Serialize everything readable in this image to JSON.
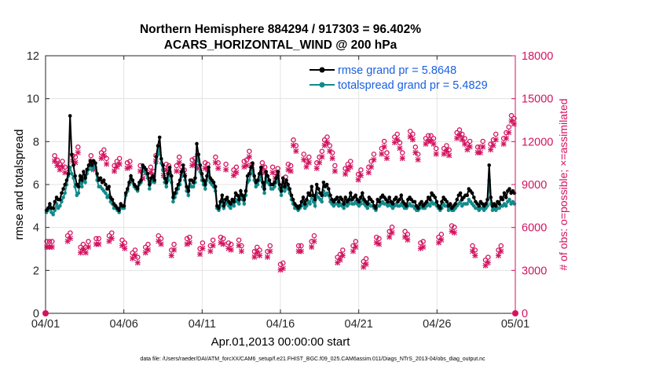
{
  "chart_data": {
    "type": "line",
    "title_line1": "Northern Hemisphere 884294 / 917303 = 96.402%",
    "title_line2": "ACARS_HORIZONTAL_WIND @ 200 hPa",
    "xlabel": "Apr.01,2013 00:00:00 start",
    "ylabel_left": "rmse and totalspread",
    "ylabel_right": "# of obs: o=possible; ×=assimilated",
    "footnote": "data file: /Users/raeder/DAI/ATM_forcXX/CAM6_setup/f.e21.FHIST_BGC.f09_025.CAM6assim.011/Diags_NTrS_2013-04/obs_diag_output.nc",
    "xlim": [
      0,
      30
    ],
    "ylim_left": [
      0,
      12
    ],
    "ylim_right": [
      0,
      18000
    ],
    "x_ticks": [
      0,
      5,
      10,
      15,
      20,
      25,
      30
    ],
    "x_tick_labels": [
      "04/01",
      "04/06",
      "04/11",
      "04/16",
      "04/21",
      "04/26",
      "05/01"
    ],
    "y_left_ticks": [
      0,
      2,
      4,
      6,
      8,
      10,
      12
    ],
    "y_left_tick_labels": [
      "0",
      "2",
      "4",
      "6",
      "8",
      "10",
      "12"
    ],
    "y_right_ticks": [
      0,
      3000,
      6000,
      9000,
      12000,
      15000,
      18000
    ],
    "y_right_tick_labels": [
      "0",
      "3000",
      "6000",
      "9000",
      "12000",
      "15000",
      "18000"
    ],
    "colors": {
      "rmse": "#000000",
      "spread": "#128a8a",
      "obs": "#d3135f",
      "legend_text": "#1a5fe0",
      "axis": "#262626"
    },
    "series": [
      {
        "name": "rmse grand pr = 5.8648",
        "key": "rmse",
        "values": [
          4.8,
          4.9,
          5.1,
          4.9,
          4.9,
          5.2,
          5.4,
          5.3,
          5.3,
          5.6,
          5.8,
          6.0,
          6.2,
          6.5,
          9.2,
          7.4,
          6.9,
          6.4,
          6.0,
          5.9,
          6.4,
          6.2,
          6.6,
          6.3,
          6.7,
          6.9,
          7.1,
          6.9,
          7.1,
          7.0,
          6.5,
          6.2,
          6.3,
          6.1,
          6.2,
          6.0,
          5.8,
          5.9,
          5.4,
          5.3,
          5.1,
          5.0,
          4.9,
          4.8,
          5.1,
          5.0,
          5.0,
          5.6,
          5.8,
          6.1,
          6.4,
          6.2,
          6.0,
          5.9,
          5.8,
          6.1,
          6.2,
          6.9,
          6.8,
          6.7,
          6.5,
          6.0,
          6.3,
          6.4,
          6.2,
          7.3,
          7.8,
          8.2,
          7.2,
          6.9,
          6.3,
          6.1,
          6.5,
          6.8,
          6.4,
          5.4,
          5.6,
          5.8,
          6.0,
          6.2,
          6.6,
          6.9,
          6.4,
          5.9,
          5.7,
          6.2,
          6.2,
          6.1,
          6.3,
          7.9,
          7.4,
          6.9,
          6.5,
          6.2,
          6.0,
          6.4,
          6.8,
          6.3,
          6.2,
          6.1,
          5.9,
          5.0,
          4.9,
          5.2,
          5.5,
          5.0,
          5.3,
          5.4,
          5.2,
          5.1,
          5.3,
          5.2,
          5.6,
          5.5,
          5.3,
          5.7,
          5.5,
          5.3,
          5.7,
          6.4,
          6.5,
          6.8,
          7.0,
          6.4,
          6.1,
          6.2,
          6.5,
          6.8,
          6.1,
          5.8,
          6.6,
          6.4,
          6.2,
          6.0,
          6.0,
          6.1,
          6.3,
          6.6,
          6.0,
          5.7,
          6.3,
          5.9,
          6.2,
          6.0,
          5.8,
          5.5,
          5.3,
          5.1,
          5.0,
          4.9,
          5.0,
          5.2,
          5.4,
          5.1,
          5.3,
          5.6,
          5.5,
          5.9,
          5.5,
          5.3,
          6.0,
          5.8,
          5.6,
          5.5,
          6.1,
          5.9,
          6.0,
          5.8,
          5.5,
          5.3,
          5.2,
          5.3,
          5.4,
          5.2,
          5.4,
          5.3,
          5.1,
          5.4,
          5.2,
          5.3,
          5.6,
          5.3,
          5.4,
          5.5,
          5.3,
          5.2,
          5.4,
          5.6,
          5.3,
          5.2,
          5.1,
          5.4,
          5.3,
          5.2,
          5.0,
          4.9,
          5.3,
          5.2,
          5.4,
          5.5,
          5.4,
          5.3,
          5.2,
          5.4,
          5.2,
          5.1,
          5.3,
          5.4,
          5.2,
          5.3,
          5.5,
          5.2,
          5.1,
          5.0,
          5.3,
          5.4,
          5.3,
          5.2,
          5.2,
          5.0,
          4.9,
          5.1,
          5.2,
          5.0,
          5.1,
          5.2,
          5.4,
          5.3,
          5.6,
          5.5,
          5.4,
          5.2,
          5.0,
          4.9,
          5.2,
          5.4,
          5.3,
          5.2,
          5.0,
          5.1,
          4.9,
          5.0,
          5.1,
          5.3,
          5.5,
          5.6,
          5.3,
          5.4,
          5.5,
          5.5,
          5.8,
          5.7,
          5.6,
          5.4,
          5.2,
          5.1,
          5.0,
          5.2,
          5.1,
          5.0,
          5.1,
          5.3,
          6.9,
          5.4,
          5.0,
          5.1,
          5.0,
          5.2,
          5.1,
          5.4,
          5.3,
          5.6,
          5.4,
          5.7,
          5.8,
          5.6,
          5.7,
          5.6
        ]
      },
      {
        "name": "totalspread grand pr = 5.4829",
        "key": "spread",
        "values": [
          4.7,
          4.8,
          5.0,
          4.7,
          4.6,
          4.8,
          5.1,
          4.9,
          5.0,
          5.2,
          5.4,
          5.6,
          6.0,
          6.4,
          6.8,
          6.5,
          6.3,
          5.9,
          5.5,
          5.6,
          6.2,
          5.9,
          6.3,
          6.1,
          6.5,
          6.7,
          6.9,
          6.7,
          6.9,
          6.8,
          6.2,
          5.9,
          5.9,
          5.8,
          5.7,
          5.6,
          5.4,
          5.5,
          5.2,
          5.1,
          4.9,
          4.9,
          4.8,
          4.7,
          5.0,
          4.9,
          4.9,
          5.5,
          5.7,
          6.0,
          6.3,
          6.1,
          5.9,
          5.8,
          5.7,
          6.0,
          6.1,
          6.8,
          6.6,
          6.5,
          6.3,
          5.8,
          6.1,
          6.2,
          6.1,
          7.0,
          7.4,
          7.7,
          7.0,
          6.7,
          6.1,
          5.9,
          6.2,
          6.6,
          6.1,
          5.2,
          5.4,
          5.6,
          5.8,
          6.0,
          6.4,
          6.7,
          6.2,
          5.7,
          5.5,
          6.0,
          5.9,
          5.9,
          6.1,
          7.4,
          7.1,
          6.6,
          6.2,
          6.0,
          5.8,
          6.2,
          6.6,
          6.1,
          6.0,
          5.9,
          5.7,
          4.9,
          4.8,
          5.0,
          5.3,
          4.9,
          5.1,
          5.2,
          5.0,
          4.9,
          5.1,
          5.0,
          5.3,
          5.2,
          5.1,
          5.4,
          5.3,
          5.1,
          5.5,
          6.1,
          6.2,
          6.5,
          6.7,
          6.2,
          5.9,
          6.0,
          6.2,
          6.5,
          5.9,
          5.6,
          6.3,
          6.1,
          6.0,
          5.8,
          5.8,
          5.9,
          6.1,
          6.3,
          5.8,
          5.5,
          6.0,
          5.7,
          5.9,
          5.8,
          5.6,
          5.3,
          5.1,
          4.9,
          4.9,
          4.8,
          4.9,
          5.0,
          5.1,
          4.9,
          5.0,
          5.2,
          5.1,
          5.5,
          5.2,
          5.0,
          5.6,
          5.4,
          5.3,
          5.2,
          5.7,
          5.5,
          5.6,
          5.5,
          5.2,
          5.1,
          5.0,
          5.1,
          5.1,
          5.0,
          5.1,
          5.0,
          4.9,
          5.1,
          5.0,
          5.1,
          5.3,
          5.1,
          5.1,
          5.2,
          5.1,
          5.0,
          5.1,
          5.3,
          5.1,
          5.0,
          4.9,
          5.1,
          5.0,
          5.0,
          4.9,
          4.8,
          5.0,
          5.0,
          5.1,
          5.2,
          5.1,
          5.1,
          5.0,
          5.1,
          5.0,
          4.9,
          5.0,
          5.1,
          5.0,
          5.0,
          5.1,
          5.0,
          4.9,
          4.9,
          5.0,
          5.1,
          5.0,
          5.0,
          4.9,
          4.8,
          4.8,
          4.9,
          5.0,
          4.9,
          4.9,
          5.0,
          5.1,
          5.0,
          5.2,
          5.1,
          5.1,
          5.0,
          4.9,
          4.8,
          4.9,
          5.1,
          5.0,
          5.0,
          4.8,
          4.9,
          4.8,
          4.8,
          4.9,
          5.0,
          5.1,
          5.2,
          5.0,
          5.1,
          5.1,
          5.1,
          5.3,
          5.2,
          5.1,
          5.0,
          4.9,
          4.9,
          4.8,
          4.9,
          4.9,
          4.8,
          4.9,
          5.0,
          6.2,
          5.1,
          4.8,
          4.9,
          4.8,
          4.9,
          4.9,
          5.0,
          5.0,
          5.1,
          5.0,
          5.2,
          5.3,
          5.1,
          5.2,
          5.1
        ]
      }
    ],
    "obs_possible": {
      "name": "possible",
      "values": [
        4800,
        4800,
        4800,
        10800,
        10500,
        10200,
        10400,
        10000,
        5200,
        5400,
        10800,
        10700,
        11400,
        4400,
        4600,
        4400,
        4800,
        10800,
        10200,
        5000,
        5000,
        11000,
        11200,
        10600,
        5200,
        5400,
        10100,
        10400,
        10600,
        4900,
        4700,
        10300,
        10400,
        4000,
        4200,
        3700,
        10100,
        9600,
        4400,
        4600,
        10000,
        9700,
        10800,
        5200,
        5000,
        9800,
        10200,
        10100,
        4200,
        4600,
        10100,
        10700,
        10000,
        9800,
        5000,
        5100,
        10500,
        10600,
        10300,
        4300,
        4700,
        10300,
        10200,
        4500,
        4900,
        10700,
        10300,
        5100,
        5000,
        10200,
        4700,
        4600,
        9800,
        10000,
        4900,
        4500,
        10400,
        10500,
        11100,
        10200,
        4100,
        4400,
        4200,
        10300,
        10000,
        4100,
        4500,
        10000,
        9600,
        9900,
        3200,
        3300,
        9300,
        10200,
        10100,
        11900,
        11500,
        4500,
        4500,
        10900,
        10400,
        10700,
        4800,
        5200,
        10300,
        10700,
        11100,
        11900,
        12100,
        11500,
        11000,
        10100,
        3700,
        3900,
        4200,
        9900,
        10200,
        10400,
        4500,
        4800,
        9500,
        9800,
        3400,
        3600,
        10000,
        10400,
        10900,
        5100,
        5000,
        11300,
        11800,
        11000,
        5500,
        5800,
        12100,
        12300,
        11700,
        11000,
        5500,
        5300,
        12500,
        12300,
        11400,
        10900,
        4700,
        4800,
        12000,
        12200,
        12200,
        12000,
        11300,
        5100,
        5300,
        11300,
        11500,
        11200,
        5900,
        5800,
        12400,
        12600,
        12300,
        12000,
        11600,
        11800,
        4500,
        4200,
        11400,
        11400,
        11800,
        3500,
        3700,
        11600,
        11900,
        12300,
        4200,
        4500,
        12000,
        12400,
        12800,
        13600,
        13400
      ]
    },
    "obs_assimilated": {
      "name": "assimilated",
      "values": [
        4800,
        4800,
        4800,
        10800,
        10500,
        10200,
        10400,
        10000,
        5200,
        5400,
        10800,
        10700,
        11400,
        4400,
        4600,
        4400,
        4800,
        10800,
        10200,
        5000,
        5000,
        11000,
        11200,
        10600,
        5200,
        5400,
        10100,
        10400,
        10600,
        4900,
        4700,
        10300,
        10400,
        4000,
        4200,
        3700,
        10100,
        9600,
        4400,
        4600,
        10000,
        9700,
        10800,
        5200,
        5000,
        9800,
        10200,
        10100,
        4200,
        4600,
        10100,
        10700,
        10000,
        9800,
        5000,
        5100,
        10500,
        10600,
        10300,
        4300,
        4700,
        10300,
        10200,
        4500,
        4900,
        10700,
        10300,
        5100,
        5000,
        10200,
        4700,
        4600,
        9800,
        10000,
        4900,
        4500,
        10400,
        10500,
        11100,
        10200,
        4100,
        4400,
        4200,
        10300,
        10000,
        4100,
        4500,
        10000,
        9600,
        9900,
        3200,
        3300,
        9300,
        10200,
        10100,
        11900,
        11500,
        4500,
        4500,
        10900,
        10400,
        10700,
        4800,
        5200,
        10300,
        10700,
        11100,
        11900,
        12100,
        11500,
        11000,
        10100,
        3700,
        3900,
        4200,
        9900,
        10200,
        10400,
        4500,
        4800,
        9500,
        9800,
        3400,
        3600,
        10000,
        10400,
        10900,
        5100,
        5000,
        11300,
        11800,
        11000,
        5500,
        5800,
        12100,
        12300,
        11700,
        11000,
        5500,
        5300,
        12500,
        12300,
        11400,
        10900,
        4700,
        4800,
        12000,
        12200,
        12200,
        12000,
        11300,
        5100,
        5300,
        11300,
        11500,
        11200,
        5900,
        5800,
        12400,
        12600,
        12300,
        12000,
        11600,
        11800,
        4500,
        4200,
        11400,
        11400,
        11800,
        3500,
        3700,
        11600,
        11900,
        12300,
        4200,
        4500,
        12000,
        12400,
        12800,
        13600,
        13400
      ]
    },
    "endpoint_markers": [
      0,
      30
    ]
  }
}
